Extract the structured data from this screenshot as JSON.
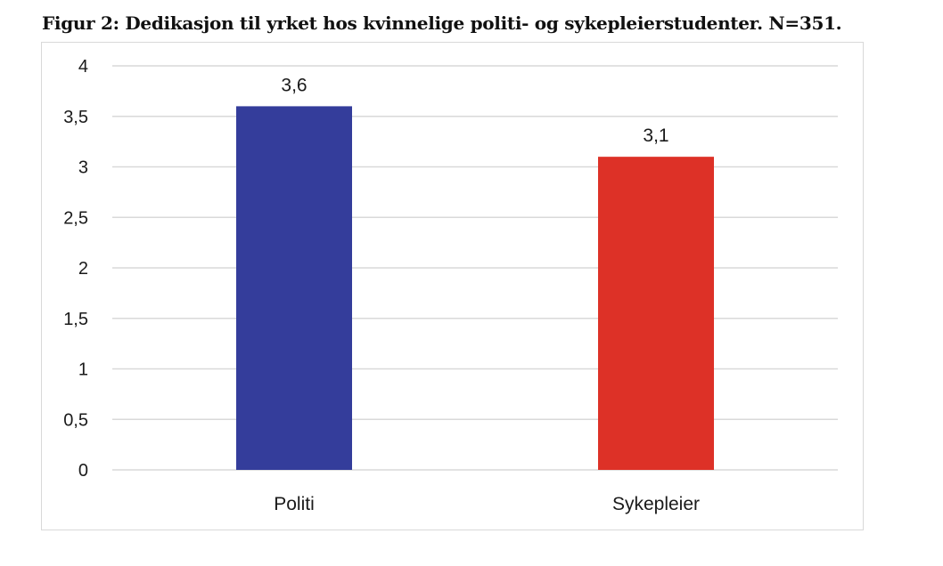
{
  "chart_data": {
    "type": "bar",
    "title": "Figur 2: Dedikasjon til yrket hos kvinnelige politi- og sykepleierstudenter. N=351.",
    "categories": [
      "Politi",
      "Sykepleier"
    ],
    "values": [
      3.6,
      3.1
    ],
    "value_labels": [
      "3,6",
      "3,1"
    ],
    "bar_colors": [
      "#343d9b",
      "#dd3127"
    ],
    "ylim": [
      0,
      4
    ],
    "yticks": [
      0,
      0.5,
      1,
      1.5,
      2,
      2.5,
      3,
      3.5,
      4
    ],
    "ytick_labels": [
      "0",
      "0,5",
      "1",
      "1,5",
      "2",
      "2,5",
      "3",
      "3,5",
      "4"
    ],
    "xlabel": "",
    "ylabel": "",
    "grid": true,
    "grid_color": "#d9d9d9",
    "legend": false
  }
}
